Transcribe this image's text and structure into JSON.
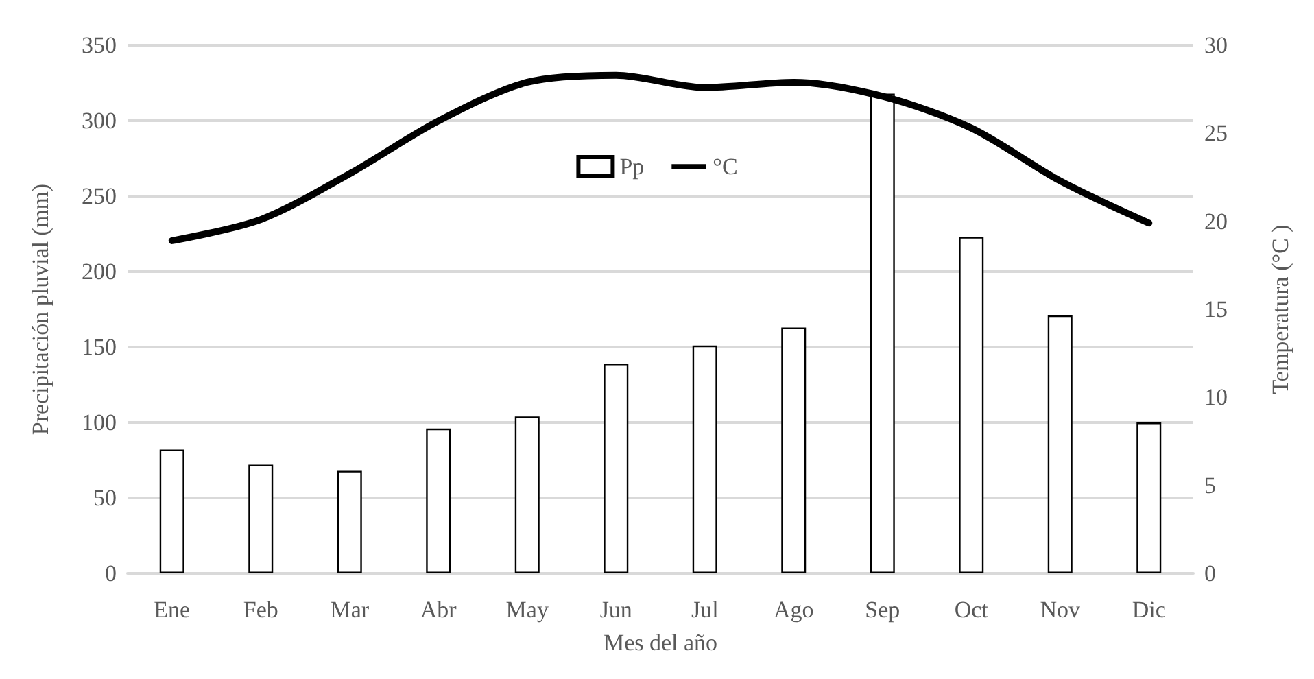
{
  "chart_data": {
    "type": "bar",
    "xlabel": "Mes del año",
    "ylabel": "Precipitación pluvial (mm)",
    "y2label": "Temperatura (°C )",
    "categories": [
      "Ene",
      "Feb",
      "Mar",
      "Abr",
      "May",
      "Jun",
      "Jul",
      "Ago",
      "Sep",
      "Oct",
      "Nov",
      "Dic"
    ],
    "series": [
      {
        "name": "Pp",
        "color": "#000000",
        "values": [
          82,
          72,
          68,
          96,
          104,
          139,
          151,
          163,
          318,
          223,
          171,
          100
        ]
      },
      {
        "name": "°C",
        "type": "line",
        "axis": "y2",
        "color": "#000000",
        "values": [
          18.9,
          20.1,
          22.7,
          25.7,
          27.9,
          28.3,
          27.6,
          27.9,
          27.1,
          25.3,
          22.3,
          19.9
        ]
      }
    ],
    "ylim": [
      0,
      350
    ],
    "yticks": [
      0,
      50,
      100,
      150,
      200,
      250,
      300,
      350
    ],
    "y2lim": [
      0,
      30
    ],
    "y2ticks": [
      0,
      5,
      10,
      15,
      20,
      25,
      30
    ],
    "grid": "y",
    "legend": "top",
    "marker": "none",
    "line_style": "solid"
  }
}
